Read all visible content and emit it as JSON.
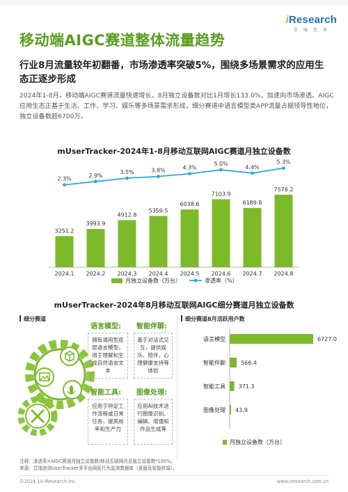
{
  "brand": {
    "name_i": "i",
    "name_rest": "Research",
    "sub": "艾 瑞 咨 询"
  },
  "page": {
    "title": "移动端AIGC赛道整体流量趋势",
    "subtitle": "行业8月流量较年初翻番，市场渗透率突破5%，围绕多场景需求的应用生态正逐步形成",
    "intro": "2024年1-8月，移动端AIGC赛道流量快速增长，8月独立设备数对比1月增长133.0%，加速向市场渗透。AIGC应用生态正基于生活、工作、学习、娱乐等多场景需求形成，细分赛道中语言模型类APP流量占据领导性地位，独立设备数超6700万。"
  },
  "left_panel": {
    "header": "细分赛道",
    "categories": [
      {
        "title": "语言模型:",
        "desc": "拥有通用型底层语言模型，用于理解和生成自然语言文本"
      },
      {
        "title": "智能伴聊:",
        "desc": "基于对话式交互，提供娱乐、陪伴、心理健康支持等体验"
      },
      {
        "title": "智能工具:",
        "desc": "应用于特定工作流程或日常任务，提高效率和生产力"
      },
      {
        "title": "图像处理:",
        "desc": "应用AI技术进行图像识别、编辑、增强和作品生成等"
      }
    ]
  },
  "right_panel": {
    "header": "细分赛道8月活跃用户数"
  },
  "chart_data": [
    {
      "type": "bar",
      "title": "mUserTracker-2024年1-8月移动互联网AIGC赛道月独立设备数",
      "categories": [
        "2024.1",
        "2024.2",
        "2024.3",
        "2024.4",
        "2024.5",
        "2024.6",
        "2024.7",
        "2024.8"
      ],
      "series": [
        {
          "name": "月独立设备数（万台）",
          "type": "bar",
          "values": [
            3251.2,
            3993.9,
            4912.8,
            5359.5,
            6038.6,
            7103.9,
            6189.8,
            7576.2
          ],
          "color": "#7cba2a"
        },
        {
          "name": "渗透率（%）",
          "type": "line",
          "values": [
            2.3,
            2.9,
            3.5,
            3.8,
            4.3,
            5.0,
            4.4,
            5.3
          ],
          "labels": [
            "2.3%",
            "2.9%",
            "3.5%",
            "3.8%",
            "4.3%",
            "5.0%",
            "4.4%",
            "5.3%"
          ],
          "color": "#29a9df"
        }
      ],
      "legend": "bottom",
      "grid": false
    },
    {
      "type": "bar",
      "orientation": "horizontal",
      "title": "mUserTracker-2024年8月移动互联网AIGC细分赛道月独立设备数",
      "categories": [
        "语言模型",
        "智能伴聊",
        "智能工具",
        "图像处理"
      ],
      "series": [
        {
          "name": "月独立设备数（万台）",
          "values": [
            6727.0,
            566.4,
            371.3,
            43.9
          ],
          "labels": [
            "6727.0",
            "566.4",
            "371.3",
            "43.9"
          ],
          "color": "#7cba2a"
        }
      ],
      "legend": "bottom",
      "grid": false
    }
  ],
  "footnote": {
    "line1": "注释：渗透率=AIGC赛道月独立设备数/移动互联网月总独立设备数*100%。",
    "line2": "来源：艾瑞咨询UserTracker多平台网民行为监测数据库（桌面及智能终端）。"
  },
  "footer": {
    "left": "©2024.10 iResearch Inc.",
    "right": "www.iresearch.com.cn"
  }
}
